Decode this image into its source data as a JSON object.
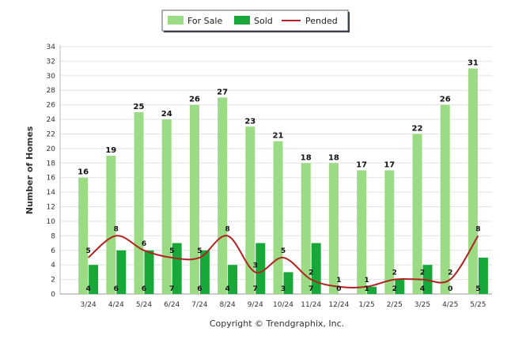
{
  "chart_data": {
    "type": "bar",
    "title": "",
    "xlabel": "",
    "ylabel": "Number of Homes",
    "ylim": [
      0,
      34
    ],
    "yticks": [
      0,
      2,
      4,
      6,
      8,
      10,
      12,
      14,
      16,
      18,
      20,
      22,
      24,
      26,
      28,
      30,
      32,
      34
    ],
    "grid": true,
    "legend_position": "top-center",
    "categories": [
      "3/24",
      "4/24",
      "5/24",
      "6/24",
      "7/24",
      "8/24",
      "9/24",
      "10/24",
      "11/24",
      "12/24",
      "1/25",
      "2/25",
      "3/25",
      "4/25",
      "5/25"
    ],
    "series": [
      {
        "name": "For Sale",
        "type": "bar",
        "color": "#9adb84",
        "values": [
          16,
          19,
          25,
          24,
          26,
          27,
          23,
          21,
          18,
          18,
          17,
          17,
          22,
          26,
          31
        ]
      },
      {
        "name": "Sold",
        "type": "bar",
        "color": "#18a83a",
        "values": [
          4,
          6,
          6,
          7,
          6,
          4,
          7,
          3,
          7,
          0,
          1,
          2,
          4,
          0,
          5
        ]
      },
      {
        "name": "Pended",
        "type": "line",
        "color": "#b22222",
        "values": [
          5,
          8,
          6,
          5,
          5,
          8,
          3,
          5,
          2,
          1,
          1,
          2,
          2,
          2,
          8
        ]
      }
    ]
  },
  "footer": {
    "copyright": "Copyright © Trendgraphix, Inc."
  }
}
